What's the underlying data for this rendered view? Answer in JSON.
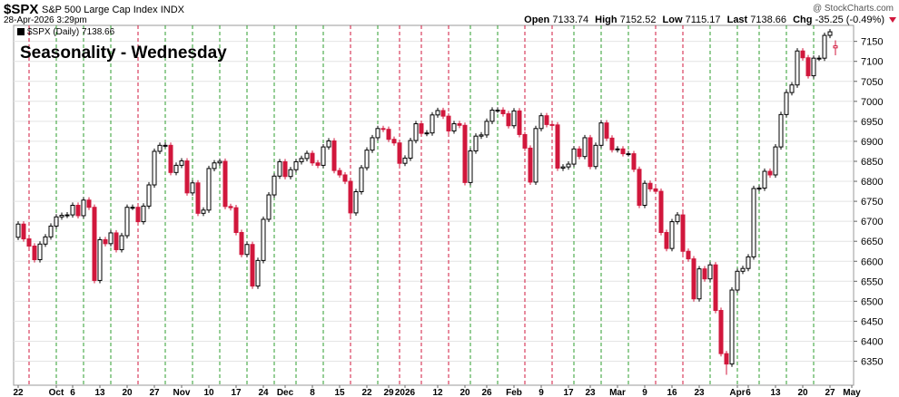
{
  "chart_data": {
    "type": "candlestick",
    "symbol": "$SPX",
    "name": "S&P 500 Large Cap Index",
    "exchange": "INDX",
    "timestamp": "28-Apr-2026 3:29pm",
    "watermark": "@ StockCharts.com",
    "title": "Seasonality - Wednesday",
    "legend": "$SPX (Daily)",
    "header_labels": {
      "open": "Open",
      "high": "High",
      "low": "Low",
      "last": "Last",
      "change": "Chg"
    },
    "change": "-35.25 (-0.49%)",
    "colors": {
      "up": "#000000",
      "down": "#d1173c",
      "wed_up": "#2e9e2e",
      "wed_down": "#d1173c",
      "title": "#1520c8"
    },
    "x": [
      "2025-09-22",
      "2025-09-23",
      "2025-09-24",
      "2025-09-25",
      "2025-09-26",
      "2025-09-29",
      "2025-09-30",
      "2025-10-01",
      "2025-10-02",
      "2025-10-03",
      "2025-10-06",
      "2025-10-07",
      "2025-10-08",
      "2025-10-09",
      "2025-10-10",
      "2025-10-13",
      "2025-10-14",
      "2025-10-15",
      "2025-10-16",
      "2025-10-17",
      "2025-10-20",
      "2025-10-21",
      "2025-10-22",
      "2025-10-23",
      "2025-10-24",
      "2025-10-27",
      "2025-10-28",
      "2025-10-29",
      "2025-10-30",
      "2025-10-31",
      "2025-11-03",
      "2025-11-04",
      "2025-11-05",
      "2025-11-06",
      "2025-11-07",
      "2025-11-10",
      "2025-11-11",
      "2025-11-12",
      "2025-11-13",
      "2025-11-14",
      "2025-11-17",
      "2025-11-18",
      "2025-11-19",
      "2025-11-20",
      "2025-11-21",
      "2025-11-24",
      "2025-11-25",
      "2025-11-26",
      "2025-11-28",
      "2025-12-01",
      "2025-12-02",
      "2025-12-03",
      "2025-12-04",
      "2025-12-05",
      "2025-12-08",
      "2025-12-09",
      "2025-12-10",
      "2025-12-11",
      "2025-12-12",
      "2025-12-15",
      "2025-12-16",
      "2025-12-17",
      "2025-12-18",
      "2025-12-19",
      "2025-12-22",
      "2025-12-23",
      "2025-12-24",
      "2025-12-26",
      "2025-12-29",
      "2025-12-30",
      "2025-12-31",
      "2026-01-02",
      "2026-01-05",
      "2026-01-06",
      "2026-01-07",
      "2026-01-08",
      "2026-01-09",
      "2026-01-12",
      "2026-01-13",
      "2026-01-14",
      "2026-01-15",
      "2026-01-16",
      "2026-01-20",
      "2026-01-21",
      "2026-01-22",
      "2026-01-23",
      "2026-01-26",
      "2026-01-27",
      "2026-01-28",
      "2026-01-29",
      "2026-01-30",
      "2026-02-02",
      "2026-02-03",
      "2026-02-04",
      "2026-02-05",
      "2026-02-06",
      "2026-02-09",
      "2026-02-10",
      "2026-02-11",
      "2026-02-12",
      "2026-02-13",
      "2026-02-17",
      "2026-02-18",
      "2026-02-19",
      "2026-02-20",
      "2026-02-23",
      "2026-02-24",
      "2026-02-25",
      "2026-02-26",
      "2026-02-27",
      "2026-03-02",
      "2026-03-03",
      "2026-03-04",
      "2026-03-05",
      "2026-03-06",
      "2026-03-09",
      "2026-03-10",
      "2026-03-11",
      "2026-03-12",
      "2026-03-13",
      "2026-03-16",
      "2026-03-17",
      "2026-03-18",
      "2026-03-19",
      "2026-03-20",
      "2026-03-23",
      "2026-03-24",
      "2026-03-25",
      "2026-03-26",
      "2026-03-27",
      "2026-03-30",
      "2026-03-31",
      "2026-04-01",
      "2026-04-02",
      "2026-04-06",
      "2026-04-07",
      "2026-04-08",
      "2026-04-09",
      "2026-04-10",
      "2026-04-13",
      "2026-04-14",
      "2026-04-15",
      "2026-04-16",
      "2026-04-17",
      "2026-04-20",
      "2026-04-21",
      "2026-04-22",
      "2026-04-23",
      "2026-04-24",
      "2026-04-27",
      "2026-04-28"
    ],
    "open": [
      6660,
      6693,
      6656,
      6638,
      6604,
      6643,
      6661,
      6688,
      6711,
      6715,
      6716,
      6740,
      6714,
      6753,
      6735,
      6552,
      6654,
      6644,
      6671,
      6629,
      6664,
      6735,
      6735,
      6699,
      6738,
      6791,
      6875,
      6890,
      6890,
      6822,
      6840,
      6851,
      6771,
      6796,
      6720,
      6728,
      6832,
      6846,
      6850,
      6737,
      6734,
      6672,
      6617,
      6642,
      6538,
      6602,
      6705,
      6766,
      6813,
      6849,
      6812,
      6829,
      6849,
      6857,
      6870,
      6846,
      6840,
      6886,
      6901,
      6827,
      6816,
      6800,
      6721,
      6774,
      6834,
      6878,
      6909,
      6932,
      6930,
      6905,
      6896,
      6845,
      6858,
      6902,
      6944,
      6920,
      6921,
      6966,
      6977,
      6963,
      6926,
      6944,
      6940,
      6797,
      6876,
      6913,
      6916,
      6950,
      6978,
      6978,
      6969,
      6939,
      6976,
      6917,
      6883,
      6798,
      6932,
      6964,
      6942,
      6941,
      6833,
      6836,
      6843,
      6881,
      6862,
      6909,
      6837,
      6890,
      6946,
      6908,
      6879,
      6881,
      6869,
      6869,
      6830,
      6740,
      6795,
      6781,
      6775,
      6672,
      6632,
      6699,
      6716,
      6625,
      6606,
      6506,
      6581,
      6556,
      6591,
      6477,
      6369,
      6343,
      6528,
      6575,
      6582,
      6611,
      6782,
      6783,
      6825,
      6816,
      6886,
      6967,
      7022,
      7041,
      7126,
      7109,
      7064,
      7108,
      7108,
      7165,
      7133.74
    ],
    "high": [
      6700,
      6700,
      6663,
      6645,
      6650,
      6668,
      6695,
      6718,
      6722,
      6723,
      6747,
      6747,
      6760,
      6760,
      6742,
      6661,
      6661,
      6678,
      6678,
      6671,
      6742,
      6742,
      6742,
      6745,
      6798,
      6882,
      6897,
      6897,
      6897,
      6847,
      6858,
      6858,
      6803,
      6803,
      6735,
      6839,
      6853,
      6857,
      6857,
      6744,
      6741,
      6679,
      6649,
      6649,
      6609,
      6712,
      6773,
      6820,
      6856,
      6856,
      6836,
      6856,
      6864,
      6877,
      6877,
      6853,
      6893,
      6908,
      6908,
      6834,
      6823,
      6807,
      6781,
      6841,
      6885,
      6916,
      6939,
      6939,
      6937,
      6912,
      6903,
      6865,
      6909,
      6951,
      6951,
      6928,
      6973,
      6984,
      6984,
      6970,
      6951,
      6951,
      6947,
      6883,
      6920,
      6923,
      6957,
      6985,
      6985,
      6985,
      6976,
      6983,
      6983,
      6924,
      6890,
      6939,
      6971,
      6971,
      6949,
      6948,
      6843,
      6850,
      6888,
      6888,
      6916,
      6916,
      6897,
      6953,
      6953,
      6915,
      6888,
      6888,
      6876,
      6876,
      6837,
      6802,
      6802,
      6788,
      6782,
      6679,
      6706,
      6723,
      6723,
      6632,
      6613,
      6588,
      6588,
      6598,
      6598,
      6484,
      6376,
      6535,
      6582,
      6589,
      6618,
      6789,
      6790,
      6832,
      6832,
      6893,
      6974,
      7029,
      7048,
      7133,
      7133,
      7116,
      7115,
      7115,
      7172,
      7181,
      7152.52
    ],
    "low": [
      6653,
      6649,
      6631,
      6597,
      6597,
      6636,
      6654,
      6681,
      6704,
      6708,
      6709,
      6707,
      6707,
      6728,
      6545,
      6545,
      6637,
      6637,
      6622,
      6622,
      6657,
      6728,
      6692,
      6692,
      6731,
      6784,
      6868,
      6883,
      6815,
      6815,
      6833,
      6764,
      6764,
      6713,
      6713,
      6721,
      6825,
      6839,
      6730,
      6727,
      6665,
      6610,
      6610,
      6531,
      6531,
      6595,
      6698,
      6759,
      6806,
      6805,
      6805,
      6822,
      6842,
      6850,
      6839,
      6833,
      6833,
      6879,
      6820,
      6809,
      6793,
      6714,
      6714,
      6767,
      6827,
      6871,
      6902,
      6923,
      6898,
      6889,
      6838,
      6838,
      6851,
      6895,
      6913,
      6913,
      6914,
      6959,
      6956,
      6919,
      6919,
      6933,
      6790,
      6790,
      6869,
      6906,
      6909,
      6943,
      6971,
      6962,
      6932,
      6932,
      6910,
      6876,
      6791,
      6791,
      6925,
      6935,
      6934,
      6826,
      6826,
      6829,
      6836,
      6855,
      6855,
      6830,
      6830,
      6883,
      6901,
      6872,
      6872,
      6862,
      6862,
      6823,
      6733,
      6733,
      6774,
      6768,
      6665,
      6625,
      6625,
      6692,
      6618,
      6599,
      6499,
      6499,
      6549,
      6549,
      6470,
      6362,
      6316,
      6336,
      6521,
      6568,
      6575,
      6604,
      6775,
      6776,
      6809,
      6809,
      6879,
      6960,
      7015,
      7034,
      7102,
      7057,
      7057,
      7101,
      7101,
      7158,
      7115.17
    ],
    "close": [
      6693,
      6656,
      6638,
      6604,
      6643,
      6661,
      6688,
      6711,
      6715,
      6716,
      6740,
      6714,
      6753,
      6735,
      6552,
      6654,
      6644,
      6671,
      6629,
      6664,
      6735,
      6735,
      6699,
      6738,
      6791,
      6875,
      6890,
      6890,
      6822,
      6840,
      6851,
      6771,
      6796,
      6720,
      6728,
      6832,
      6846,
      6850,
      6737,
      6734,
      6672,
      6617,
      6642,
      6538,
      6602,
      6705,
      6766,
      6813,
      6849,
      6812,
      6829,
      6849,
      6857,
      6870,
      6846,
      6840,
      6886,
      6901,
      6827,
      6816,
      6800,
      6721,
      6774,
      6834,
      6878,
      6909,
      6932,
      6930,
      6905,
      6896,
      6845,
      6858,
      6902,
      6944,
      6920,
      6921,
      6966,
      6977,
      6963,
      6926,
      6944,
      6940,
      6797,
      6876,
      6913,
      6916,
      6950,
      6978,
      6978,
      6969,
      6939,
      6976,
      6917,
      6883,
      6798,
      6932,
      6964,
      6942,
      6941,
      6833,
      6836,
      6843,
      6881,
      6862,
      6909,
      6837,
      6890,
      6946,
      6908,
      6879,
      6881,
      6869,
      6869,
      6830,
      6740,
      6795,
      6781,
      6775,
      6672,
      6632,
      6699,
      6716,
      6625,
      6606,
      6506,
      6581,
      6556,
      6591,
      6477,
      6369,
      6343,
      6528,
      6575,
      6582,
      6611,
      6782,
      6783,
      6825,
      6816,
      6886,
      6967,
      7022,
      7041,
      7126,
      7109,
      7064,
      7108,
      7108,
      7165,
      7174,
      7138.66
    ],
    "ylim": [
      6290,
      7190
    ],
    "yticks": [
      6350,
      6400,
      6450,
      6500,
      6550,
      6600,
      6650,
      6700,
      6750,
      6800,
      6850,
      6900,
      6950,
      7000,
      7050,
      7100,
      7150
    ],
    "xticks": [
      {
        "value": "2025-09-22",
        "label": "22"
      },
      {
        "value": "2025-10-01",
        "label": "Oct"
      },
      {
        "value": "2025-10-06",
        "label": "6"
      },
      {
        "value": "2025-10-13",
        "label": "13"
      },
      {
        "value": "2025-10-20",
        "label": "20"
      },
      {
        "value": "2025-10-27",
        "label": "27"
      },
      {
        "value": "2025-11-03",
        "label": "Nov"
      },
      {
        "value": "2025-11-10",
        "label": "10"
      },
      {
        "value": "2025-11-17",
        "label": "17"
      },
      {
        "value": "2025-11-24",
        "label": "24"
      },
      {
        "value": "2025-12-01",
        "label": "Dec"
      },
      {
        "value": "2025-12-08",
        "label": "8"
      },
      {
        "value": "2025-12-15",
        "label": "15"
      },
      {
        "value": "2025-12-22",
        "label": "22"
      },
      {
        "value": "2025-12-29",
        "label": "29"
      },
      {
        "value": "2026-01-02",
        "label": "2026"
      },
      {
        "value": "2026-01-12",
        "label": "12"
      },
      {
        "value": "2026-01-20",
        "label": "20"
      },
      {
        "value": "2026-01-26",
        "label": "26"
      },
      {
        "value": "2026-02-02",
        "label": "Feb"
      },
      {
        "value": "2026-02-09",
        "label": "9"
      },
      {
        "value": "2026-02-17",
        "label": "17"
      },
      {
        "value": "2026-02-23",
        "label": "23"
      },
      {
        "value": "2026-03-02",
        "label": "Mar"
      },
      {
        "value": "2026-03-09",
        "label": "9"
      },
      {
        "value": "2026-03-16",
        "label": "16"
      },
      {
        "value": "2026-03-23",
        "label": "23"
      },
      {
        "value": "2026-04-01",
        "label": "Apr"
      },
      {
        "value": "2026-04-06",
        "label": "6"
      },
      {
        "value": "2026-04-13",
        "label": "13"
      },
      {
        "value": "2026-04-20",
        "label": "20"
      },
      {
        "value": "2026-04-27",
        "label": "27"
      },
      {
        "value": "2026-05-01",
        "label": "May"
      }
    ]
  }
}
